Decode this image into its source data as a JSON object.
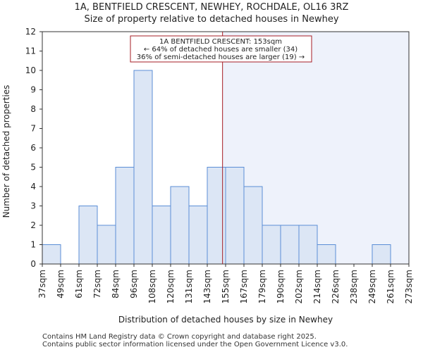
{
  "header": {
    "title_line1": "1A, BENTFIELD CRESCENT, NEWHEY, ROCHDALE, OL16 3RZ",
    "title_line2": "Size of property relative to detached houses in Newhey"
  },
  "footer": {
    "line1": "Contains HM Land Registry data © Crown copyright and database right 2025.",
    "line2": "Contains public sector information licensed under the Open Government Licence v3.0."
  },
  "chart_data": {
    "type": "bar",
    "title": "Size of property relative to detached houses in Newhey",
    "xlabel": "Distribution of detached houses by size in Newhey",
    "ylabel": "Number of detached properties",
    "ylim": [
      0,
      12
    ],
    "yticks": [
      0,
      1,
      2,
      3,
      4,
      5,
      6,
      7,
      8,
      9,
      10,
      11,
      12
    ],
    "bin_edges": [
      "37sqm",
      "49sqm",
      "61sqm",
      "72sqm",
      "84sqm",
      "96sqm",
      "108sqm",
      "120sqm",
      "131sqm",
      "143sqm",
      "155sqm",
      "167sqm",
      "179sqm",
      "190sqm",
      "202sqm",
      "214sqm",
      "226sqm",
      "238sqm",
      "249sqm",
      "261sqm",
      "273sqm"
    ],
    "values": [
      1,
      0,
      3,
      2,
      5,
      10,
      3,
      4,
      3,
      5,
      5,
      4,
      2,
      2,
      2,
      1,
      0,
      0,
      1,
      0
    ],
    "property_size_sqm": 153,
    "bar_color": "#dce6f5",
    "bar_edge_color": "#5b8ed6",
    "marker_color": "#a61c24",
    "shade_color": "#eef2fb",
    "annotation": {
      "line1": "1A BENTFIELD CRESCENT: 153sqm",
      "line2": "← 64% of detached houses are smaller (34)",
      "line3": "36% of semi-detached houses are larger (19) →"
    },
    "grid": false
  }
}
